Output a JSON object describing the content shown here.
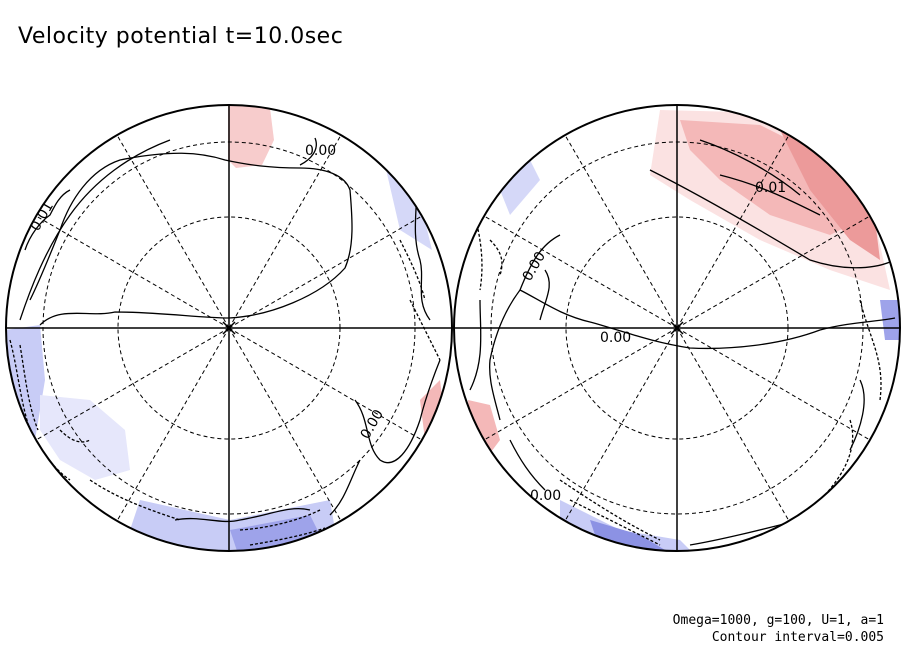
{
  "title": "Velocity potential t=10.0sec",
  "footer": {
    "params": "Omega=1000, g=100, U=1, a=1",
    "contour_interval": "Contour interval=0.005"
  },
  "chart_data": {
    "type": "heatmap",
    "projection": "orthographic polar (two hemispheres)",
    "variable": "Velocity potential",
    "time": "t=10.0sec",
    "contour_interval": 0.005,
    "colors": {
      "positive": "#f4b8b8",
      "positive_strong": "#ec8c8c",
      "negative": "#c8ccf6",
      "negative_strong": "#8c92e4"
    },
    "grid": true,
    "hemispheres": [
      {
        "name": "left",
        "contour_labels": [
          "0.01",
          "0.00",
          "0.00"
        ],
        "regions": [
          "positive near top",
          "negative at left edge and lower rim"
        ]
      },
      {
        "name": "right",
        "contour_labels": [
          "0.01",
          "0.00",
          "0.00",
          "0.00"
        ],
        "regions": [
          "positive upper right",
          "negative at lower rim and right edge"
        ]
      }
    ]
  }
}
